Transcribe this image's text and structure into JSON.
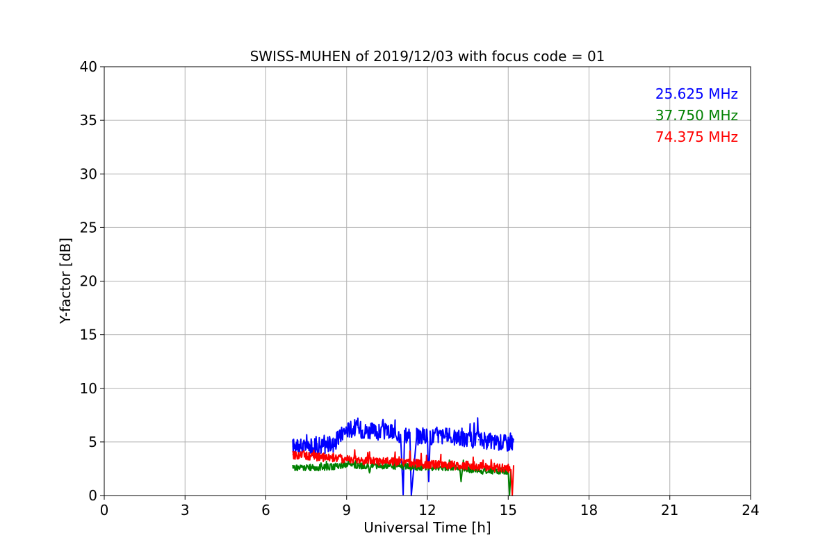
{
  "chart_data": {
    "type": "line",
    "title": "SWISS-MUHEN of 2019/12/03 with focus code = 01",
    "xlabel": "Universal Time [h]",
    "ylabel": "Y-factor [dB]",
    "xlim": [
      0,
      24
    ],
    "ylim": [
      0,
      40
    ],
    "xticks": [
      0,
      3,
      6,
      9,
      12,
      15,
      18,
      21,
      24
    ],
    "yticks": [
      0,
      5,
      10,
      15,
      20,
      25,
      30,
      35,
      40
    ],
    "grid": true,
    "legend_position": "top-right",
    "series": [
      {
        "name": "25.625 MHz",
        "color": "#0000ff",
        "band": 1.6,
        "x": [
          7.0,
          7.3,
          7.6,
          7.9,
          8.2,
          8.5,
          8.7,
          8.9,
          9.1,
          9.3,
          9.6,
          9.9,
          10.2,
          10.5,
          10.8,
          11.0,
          11.1,
          11.15,
          11.2,
          11.35,
          11.4,
          11.6,
          11.9,
          12.0,
          12.05,
          12.1,
          12.4,
          12.7,
          13.0,
          13.3,
          13.6,
          13.9,
          14.2,
          14.5,
          14.8,
          15.0,
          15.2
        ],
        "y": [
          4.6,
          4.6,
          4.5,
          4.6,
          4.7,
          4.8,
          5.3,
          6.0,
          6.2,
          6.3,
          6.1,
          6.0,
          5.9,
          6.0,
          5.8,
          5.7,
          0.1,
          5.6,
          5.7,
          5.6,
          0.0,
          5.5,
          5.6,
          5.4,
          1.3,
          5.5,
          5.6,
          5.5,
          5.4,
          5.3,
          5.2,
          5.2,
          5.1,
          5.0,
          5.0,
          4.9,
          5.0
        ]
      },
      {
        "name": "37.750 MHz",
        "color": "#008000",
        "band": 0.6,
        "x": [
          7.0,
          7.5,
          8.0,
          8.5,
          9.0,
          9.5,
          9.8,
          9.85,
          9.9,
          10.3,
          10.8,
          11.3,
          11.8,
          12.3,
          12.8,
          13.2,
          13.25,
          13.3,
          13.7,
          14.0,
          14.5,
          14.9,
          15.0,
          15.05,
          15.1
        ],
        "y": [
          2.6,
          2.6,
          2.6,
          2.7,
          2.9,
          2.8,
          2.7,
          2.2,
          2.8,
          2.8,
          2.7,
          2.7,
          2.6,
          2.6,
          2.6,
          2.6,
          1.3,
          2.5,
          2.4,
          2.3,
          2.3,
          2.3,
          2.2,
          0.0,
          2.3
        ]
      },
      {
        "name": "74.375 MHz",
        "color": "#ff0000",
        "band": 0.8,
        "x": [
          7.0,
          7.5,
          8.0,
          8.5,
          9.0,
          9.5,
          10.0,
          10.5,
          11.0,
          11.5,
          12.0,
          12.5,
          13.0,
          13.5,
          14.0,
          14.5,
          15.0,
          15.1,
          15.15,
          15.2
        ],
        "y": [
          3.8,
          3.7,
          3.6,
          3.5,
          3.4,
          3.3,
          3.2,
          3.2,
          3.1,
          3.0,
          2.9,
          2.9,
          2.8,
          2.8,
          2.7,
          2.6,
          2.5,
          2.4,
          0.0,
          2.8
        ]
      }
    ]
  }
}
